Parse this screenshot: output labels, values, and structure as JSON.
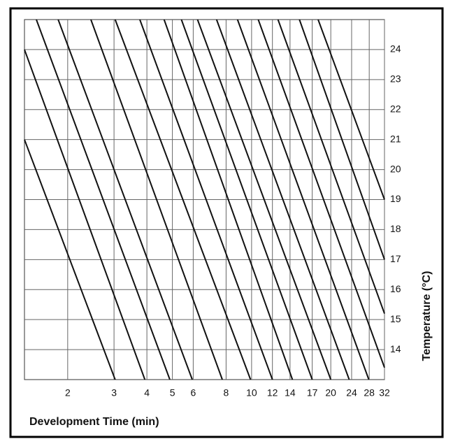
{
  "chart_data": {
    "type": "line",
    "x_label": "Development Time (min)",
    "y_label": "Temperature  (°C)",
    "xscale": "log",
    "xlim": [
      1.37,
      32
    ],
    "ylim": [
      13,
      25
    ],
    "xticks": [
      2,
      3,
      4,
      5,
      6,
      8,
      10,
      12,
      14,
      17,
      20,
      24,
      28,
      32
    ],
    "yticks": [
      14,
      15,
      16,
      17,
      18,
      19,
      20,
      21,
      22,
      23,
      24
    ],
    "grid": true,
    "series": [
      {
        "color": "#111111",
        "x": [
          1.37,
          3.03
        ],
        "values": [
          21,
          13
        ]
      },
      {
        "color": "#111111",
        "x": [
          1.37,
          3.93
        ],
        "values": [
          24,
          13
        ]
      },
      {
        "color": "#111111",
        "x": [
          1.52,
          4.89
        ],
        "values": [
          25,
          13
        ]
      },
      {
        "color": "#111111",
        "x": [
          1.84,
          5.95
        ],
        "values": [
          25,
          13
        ]
      },
      {
        "color": "#111111",
        "x": [
          2.45,
          7.74
        ],
        "values": [
          25,
          13
        ]
      },
      {
        "color": "#111111",
        "x": [
          3.03,
          9.91
        ],
        "values": [
          25,
          13
        ]
      },
      {
        "color": "#111111",
        "x": [
          3.76,
          12.0
        ],
        "values": [
          25,
          13
        ]
      },
      {
        "color": "#111111",
        "x": [
          4.65,
          14.3
        ],
        "values": [
          25,
          13
        ]
      },
      {
        "color": "#111111",
        "x": [
          5.41,
          17.0
        ],
        "values": [
          25,
          13
        ]
      },
      {
        "color": "#111111",
        "x": [
          6.23,
          20.0
        ],
        "values": [
          25,
          13
        ]
      },
      {
        "color": "#111111",
        "x": [
          7.36,
          23.5
        ],
        "values": [
          25,
          13
        ]
      },
      {
        "color": "#111111",
        "x": [
          8.84,
          27.9
        ],
        "values": [
          25,
          13
        ]
      },
      {
        "color": "#111111",
        "x": [
          10.6,
          32
        ],
        "values": [
          25,
          13.4
        ]
      },
      {
        "color": "#111111",
        "x": [
          12.6,
          32
        ],
        "values": [
          25,
          15.2
        ]
      },
      {
        "color": "#111111",
        "x": [
          15.2,
          32
        ],
        "values": [
          25,
          17
        ]
      },
      {
        "color": "#111111",
        "x": [
          17.9,
          32
        ],
        "values": [
          25,
          19
        ]
      }
    ]
  }
}
